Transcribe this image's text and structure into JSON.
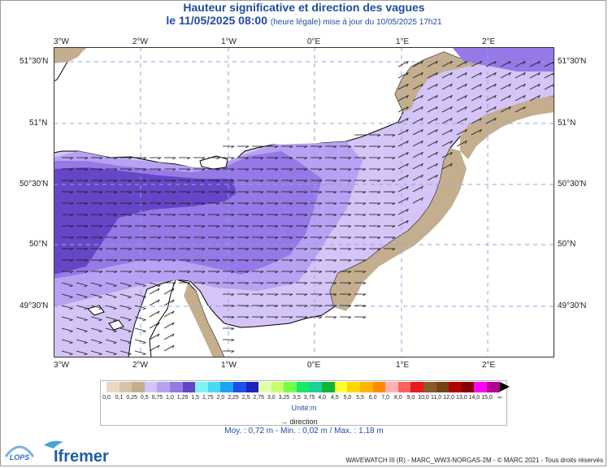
{
  "title": "Hauteur significative et direction des vagues",
  "subtitle_main": "le 11/05/2025 08:00",
  "subtitle_note": "(heure légale) mise à jour du 10/05/2025 17h21",
  "lon_ticks": [
    "3°W",
    "2°W",
    "1°W",
    "0°E",
    "1°E",
    "2°E"
  ],
  "lat_ticks": [
    "51°30'N",
    "51°N",
    "50°30'N",
    "50°N",
    "49°30'N"
  ],
  "legend": {
    "labels": [
      "0,0",
      "0,1",
      "0,25",
      "0,5",
      "0,75",
      "1,0",
      "1,25",
      "1,5",
      "1,75",
      "2,0",
      "2,25",
      "2,5",
      "2,75",
      "3,0",
      "3,25",
      "3,5",
      "3,75",
      "4,0",
      "4,5",
      "5,0",
      "5,5",
      "6,0",
      "7,0",
      "8,0",
      "9,0",
      "10,0",
      "11,0",
      "12,0",
      "13,0",
      "14,0",
      "15,0",
      "∞"
    ],
    "colors": [
      "#e8d9c2",
      "#d7c3a7",
      "#c4ae8e",
      "#d4c4f7",
      "#b7a1f2",
      "#9678e6",
      "#6646c6",
      "#7ef5f5",
      "#49d9f5",
      "#1ea3f0",
      "#1e50e6",
      "#1e23b9",
      "#e3ffa8",
      "#c9ff73",
      "#73ff45",
      "#17e86b",
      "#1dcf98",
      "#13b43a",
      "#ffff33",
      "#ffd700",
      "#ffb400",
      "#ff8a00",
      "#ffb1b1",
      "#ff6060",
      "#e61b1b",
      "#8b5a2b",
      "#754214",
      "#b30000",
      "#800000",
      "#ff00ff",
      "#b4008f"
    ],
    "unit": "Unité:m",
    "direction_label": "direction"
  },
  "stats": "Moy. : 0,72 m   -   Min. : 0,02 m / Max. : 1,18 m",
  "footer": "WAVEWATCH III (R) - MARC_WW3-NORGAS-2M - © MARC 2021 - Tous droits réservés",
  "logos": {
    "lops": "LOPS",
    "ifremer": "Ifremer"
  },
  "colors": {
    "land": "#ffffff",
    "shallow": "#c4ae8e",
    "lightest": "#d4c4f7",
    "light": "#b7a1f2",
    "mid": "#9678e6",
    "dark": "#6646c6",
    "title": "#1f4d9e"
  }
}
